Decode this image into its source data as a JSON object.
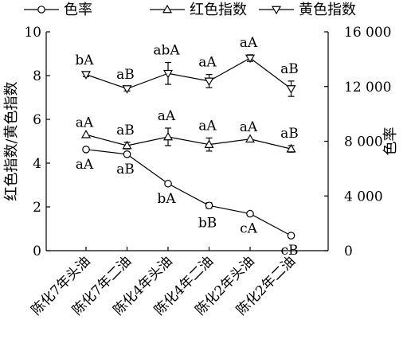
{
  "chart_data": {
    "type": "line",
    "categories": [
      "陈化7年头油",
      "陈化7年二油",
      "陈化4年头油",
      "陈化4年二油",
      "陈化2年头油",
      "陈化2年二油"
    ],
    "y_left": {
      "label": "红色指数/黄色指数",
      "range": [
        0,
        10
      ],
      "ticks": [
        "0",
        "2",
        "4",
        "6",
        "8",
        "10"
      ]
    },
    "y_right": {
      "label": "色率",
      "range": [
        0,
        16000
      ],
      "ticks": [
        "0",
        "4 000",
        "8 000",
        "12 000",
        "16 000"
      ]
    },
    "series": [
      {
        "name": "色率",
        "axis": "right",
        "marker": "circle",
        "values": [
          7400,
          7050,
          4900,
          3300,
          2700,
          1100
        ],
        "errors": [
          0,
          0,
          0,
          200,
          0,
          0
        ],
        "labels": [
          "aA",
          "aB",
          "bA",
          "bB",
          "cA",
          "cB"
        ],
        "label_pos": "below"
      },
      {
        "name": "红色指数",
        "axis": "left",
        "marker": "triangle-up",
        "values": [
          5.3,
          4.8,
          5.2,
          4.85,
          5.1,
          4.65
        ],
        "errors": [
          0,
          0.15,
          0.4,
          0.3,
          0,
          0.15
        ],
        "labels": [
          "aA",
          "aB",
          "aA",
          "aA",
          "aA",
          "aB"
        ],
        "label_pos": "above"
      },
      {
        "name": "黄色指数",
        "axis": "left",
        "marker": "triangle-down",
        "values": [
          8.05,
          7.4,
          8.1,
          7.75,
          8.8,
          7.4
        ],
        "errors": [
          0.1,
          0.1,
          0.5,
          0.3,
          0.15,
          0.35
        ],
        "labels": [
          "bA",
          "aB",
          "abA",
          "aA",
          "aA",
          "aB"
        ],
        "label_pos": "above"
      }
    ],
    "grid": false,
    "legend_position": "top"
  }
}
